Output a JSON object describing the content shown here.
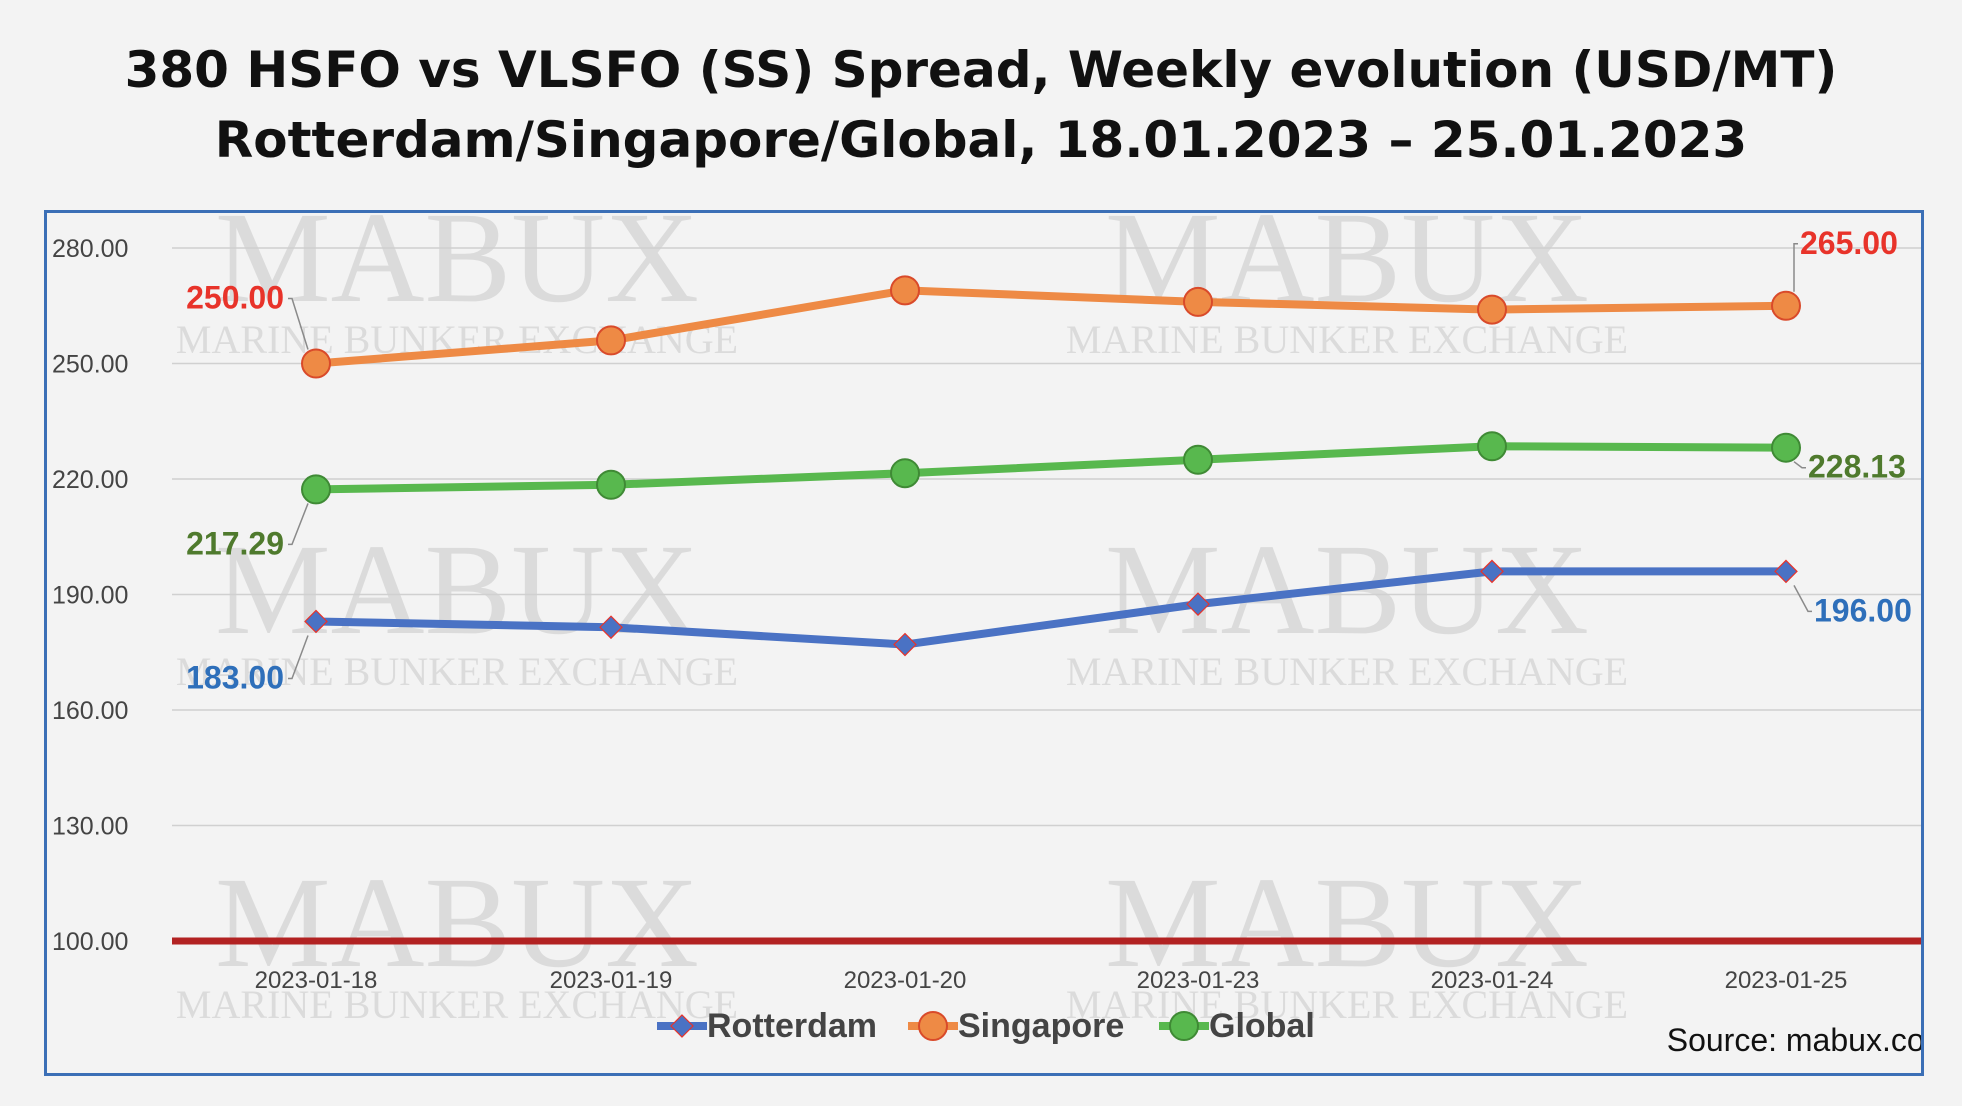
{
  "title_line1": "380 HSFO vs VLSFO (SS) Spread, Weekly evolution (USD/MT)",
  "title_line2": "Rotterdam/Singapore/Global, 18.01.2023 – 25.01.2023",
  "source": "Source: mabux.com",
  "watermark": {
    "brand": "MABUX",
    "tagline": "MARINE BUNKER EXCHANGE"
  },
  "chart_data": {
    "type": "line",
    "categories": [
      "2023-01-18",
      "2023-01-19",
      "2023-01-20",
      "2023-01-23",
      "2023-01-24",
      "2023-01-25"
    ],
    "ylim": [
      100,
      280
    ],
    "yticks": [
      "100.00",
      "130.00",
      "160.00",
      "190.00",
      "220.00",
      "250.00",
      "280.00"
    ],
    "grid": true,
    "legend_position": "bottom",
    "reference_line": {
      "value": 100,
      "color": "#b22222"
    },
    "series": [
      {
        "name": "Rotterdam",
        "color": "#4a72c4",
        "marker": "diamond",
        "values": [
          183,
          181.5,
          177,
          187.5,
          196,
          196
        ],
        "labels": [
          {
            "index": 0,
            "text": "183.00"
          },
          {
            "index": 5,
            "text": "196.00"
          }
        ],
        "label_color": "#2e6fba"
      },
      {
        "name": "Singapore",
        "color": "#ee8a45",
        "marker": "circle",
        "values": [
          250,
          256,
          269,
          266,
          264,
          265
        ],
        "labels": [
          {
            "index": 0,
            "text": "250.00"
          },
          {
            "index": 5,
            "text": "265.00"
          }
        ],
        "label_color": "#e8332a"
      },
      {
        "name": "Global",
        "color": "#58b84e",
        "marker": "circle",
        "values": [
          217.29,
          218.5,
          221.5,
          225,
          228.5,
          228.13
        ],
        "labels": [
          {
            "index": 0,
            "text": "217.29"
          },
          {
            "index": 5,
            "text": "228.13"
          }
        ],
        "label_color": "#4f7a2d"
      }
    ]
  }
}
